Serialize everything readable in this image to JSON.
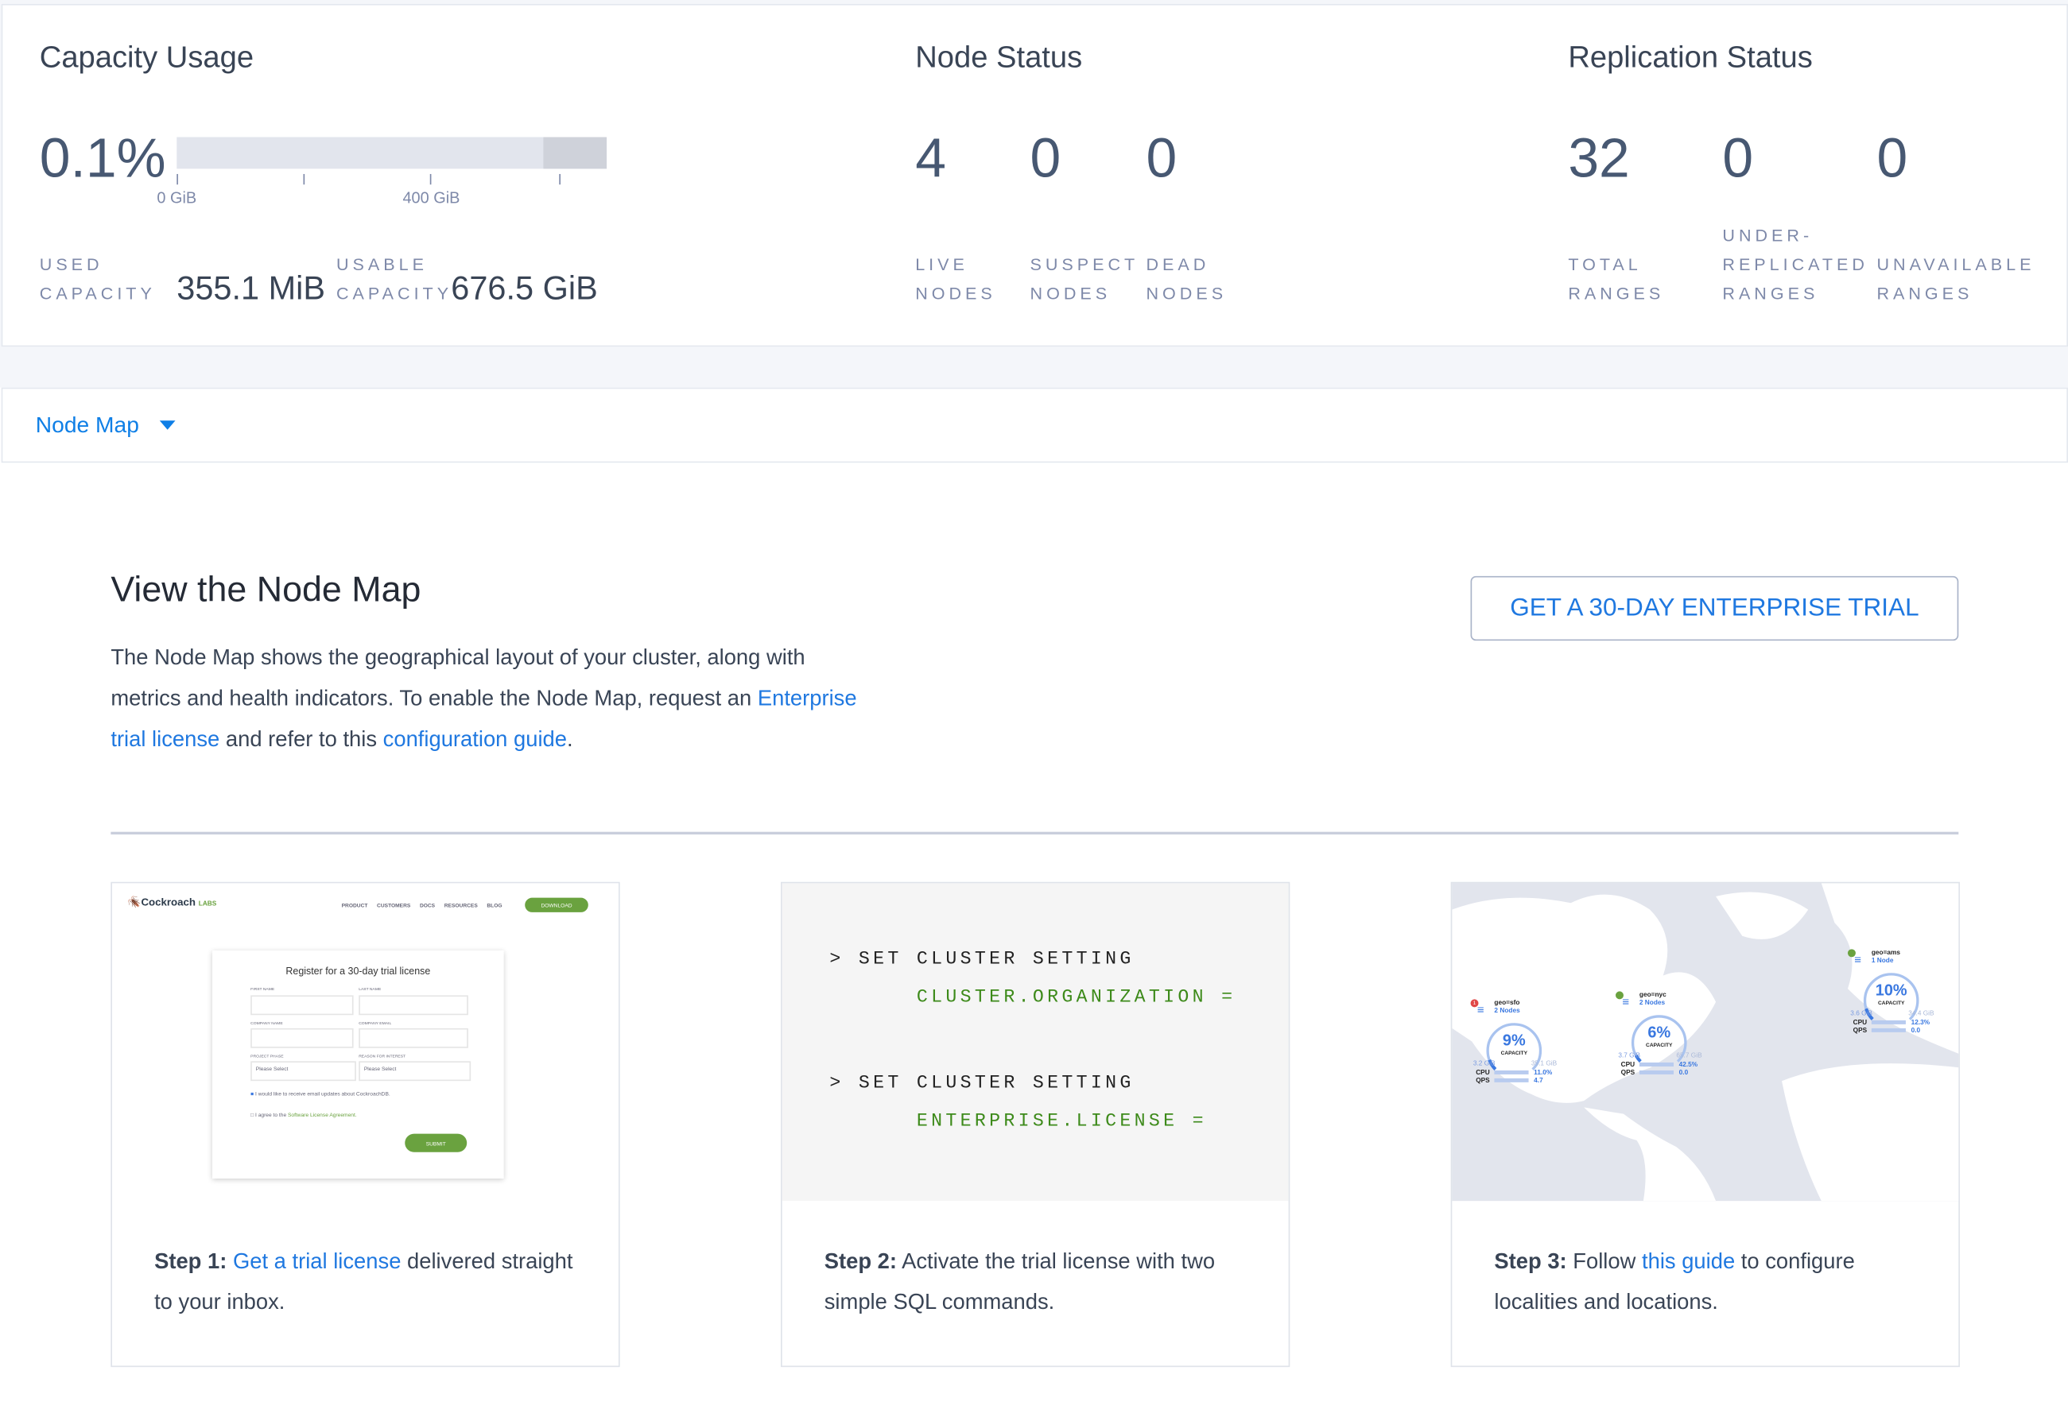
{
  "capacity": {
    "title": "Capacity Usage",
    "percent": "0.1%",
    "bar_used_fraction": 0.001,
    "axis_labels": [
      "0 GiB",
      "400 GiB"
    ],
    "used_label": [
      "USED",
      "CAPACITY"
    ],
    "used_value": "355.1 MiB",
    "usable_label": [
      "USABLE",
      "CAPACITY"
    ],
    "usable_value": "676.5 GiB"
  },
  "node_status": {
    "title": "Node Status",
    "stats": [
      {
        "value": "4",
        "label": [
          "LIVE",
          "NODES"
        ]
      },
      {
        "value": "0",
        "label": [
          "SUSPECT",
          "NODES"
        ]
      },
      {
        "value": "0",
        "label": [
          "DEAD",
          "NODES"
        ]
      }
    ]
  },
  "replication": {
    "title": "Replication Status",
    "stats": [
      {
        "value": "32",
        "label": [
          "TOTAL",
          "RANGES"
        ]
      },
      {
        "value": "0",
        "label": [
          "UNDER-",
          "REPLICATED",
          "RANGES"
        ]
      },
      {
        "value": "0",
        "label": [
          "UNAVAILABLE",
          "RANGES"
        ]
      }
    ]
  },
  "dropdown": {
    "selected": "Node Map",
    "icon": "caret-down-icon"
  },
  "promo": {
    "title": "View the Node Map",
    "text1": "The Node Map shows the geographical layout of your cluster, along with metrics and health indicators. To enable the Node Map, request an ",
    "link1": "Enterprise trial license",
    "text2": " and refer to this ",
    "link2": "configuration guide",
    "text3": ".",
    "button": "GET A 30-DAY ENTERPRISE TRIAL"
  },
  "steps": [
    {
      "label": "Step 1:",
      "link": "Get a trial license",
      "text": " delivered straight to your inbox."
    },
    {
      "label": "Step 2:",
      "text": " Activate the trial license with two simple SQL commands."
    },
    {
      "label": "Step 3:",
      "pre": " Follow ",
      "link": "this guide",
      "text": " to configure localities and locations."
    }
  ],
  "step1_image": {
    "logo": "Cockroach",
    "logo_suffix": "LABS",
    "nav": [
      "PRODUCT",
      "CUSTOMERS",
      "DOCS",
      "RESOURCES",
      "BLOG"
    ],
    "download": "DOWNLOAD",
    "form_title": "Register for a 30-day trial license",
    "fields": [
      "FIRST NAME",
      "LAST NAME",
      "COMPANY NAME",
      "COMPANY EMAIL",
      "PROJECT PHASE",
      "REASON FOR INTEREST"
    ],
    "select_placeholder": "Please Select",
    "checkbox1": "I would like to receive email updates about CockroachDB.",
    "checkbox2_text": "I agree to the ",
    "checkbox2_link": "Software License Agreement.",
    "submit": "SUBMIT"
  },
  "step2_sql": [
    {
      "cmd": "> SET CLUSTER SETTING",
      "arg": "CLUSTER.ORGANIZATION ="
    },
    {
      "cmd": "> SET CLUSTER SETTING",
      "arg": "ENTERPRISE.LICENSE ="
    }
  ],
  "step3_map": {
    "localities": [
      {
        "name": "geo=sfo",
        "nodes": "2 Nodes",
        "capacity": "9%",
        "cap_label": "CAPACITY",
        "used": "3.2 GiB",
        "total": "35.1 GiB",
        "cpu": "11.0%",
        "qps": "4.7",
        "status": "alert",
        "alert_count": "1",
        "fill": 0.09
      },
      {
        "name": "geo=nyc",
        "nodes": "2 Nodes",
        "capacity": "6%",
        "cap_label": "CAPACITY",
        "used": "3.7 GiB",
        "total": "65.7 GiB",
        "cpu": "42.5%",
        "qps": "0.0",
        "status": "ok",
        "fill": 0.06
      },
      {
        "name": "geo=ams",
        "nodes": "1 Node",
        "capacity": "10%",
        "cap_label": "CAPACITY",
        "used": "3.6 GiB",
        "total": "34.4 GiB",
        "cpu": "12.3%",
        "qps": "0.0",
        "status": "ok",
        "fill": 0.1
      }
    ],
    "cpu_label": "CPU",
    "qps_label": "QPS"
  },
  "colors": {
    "accent": "#1f78e0",
    "text": "#394455",
    "muted": "#7e89a9",
    "green": "#6aa23f",
    "sql_green": "#3d8a1a"
  }
}
